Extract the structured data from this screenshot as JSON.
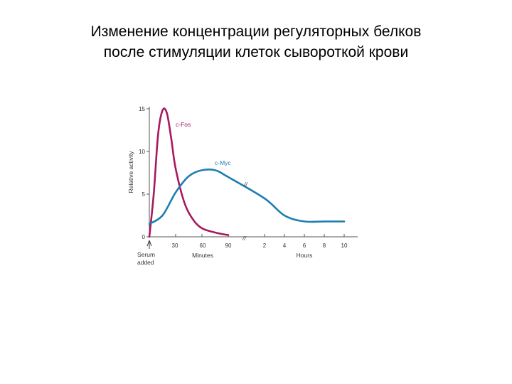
{
  "slide": {
    "title_line1": "Изменение концентрации регуляторных белков",
    "title_line2": "после стимуляции клеток сывороткой крови"
  },
  "chart_data": {
    "type": "line",
    "title": "",
    "ylabel": "Relative activity",
    "ylim": [
      0,
      15
    ],
    "y_ticks": [
      "0",
      "5",
      "10",
      "15"
    ],
    "x_axis": {
      "segments": [
        {
          "label": "Minutes",
          "ticks": [
            "30",
            "60",
            "90"
          ]
        },
        {
          "label": "Hours",
          "ticks": [
            "2",
            "4",
            "6",
            "8",
            "10"
          ]
        }
      ]
    },
    "start_annotation": {
      "line1": "Serum",
      "line2": "added"
    },
    "break_marks": [
      "//",
      "//"
    ],
    "series": [
      {
        "name": "c-Fos",
        "color": "#a8195e",
        "points": [
          {
            "t": "0 min",
            "y": 0
          },
          {
            "t": "5 min",
            "y": 5.0
          },
          {
            "t": "10 min",
            "y": 12.0
          },
          {
            "t": "15 min",
            "y": 14.8
          },
          {
            "t": "20 min",
            "y": 14.5
          },
          {
            "t": "25 min",
            "y": 11.5
          },
          {
            "t": "30 min",
            "y": 8.0
          },
          {
            "t": "40 min",
            "y": 4.0
          },
          {
            "t": "50 min",
            "y": 2.0
          },
          {
            "t": "60 min",
            "y": 1.0
          },
          {
            "t": "75 min",
            "y": 0.5
          },
          {
            "t": "90 min",
            "y": 0.2
          }
        ]
      },
      {
        "name": "c-Myc",
        "color": "#1f7fb0",
        "points": [
          {
            "t": "0 min",
            "y": 1.5
          },
          {
            "t": "15 min",
            "y": 2.5
          },
          {
            "t": "30 min",
            "y": 5.2
          },
          {
            "t": "45 min",
            "y": 7.1
          },
          {
            "t": "60 min",
            "y": 7.8
          },
          {
            "t": "75 min",
            "y": 7.8
          },
          {
            "t": "90 min",
            "y": 7.0
          },
          {
            "t": "2 h",
            "y": 4.5
          },
          {
            "t": "4 h",
            "y": 2.5
          },
          {
            "t": "6 h",
            "y": 1.8
          },
          {
            "t": "8 h",
            "y": 1.8
          },
          {
            "t": "10 h",
            "y": 1.8
          }
        ]
      }
    ],
    "legend": "labels placed next to curves"
  }
}
